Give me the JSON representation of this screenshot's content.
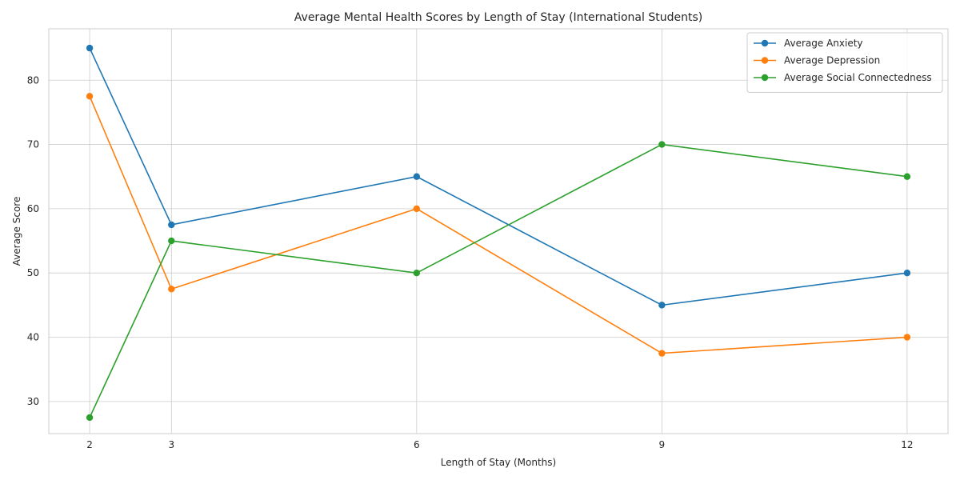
{
  "chart_data": {
    "type": "line",
    "title": "Average Mental Health Scores by Length of Stay (International Students)",
    "xlabel": "Length of Stay (Months)",
    "ylabel": "Average Score",
    "x": [
      2,
      3,
      6,
      9,
      12
    ],
    "x_ticks": [
      2,
      3,
      6,
      9,
      12
    ],
    "xlim": [
      1.5,
      12.5
    ],
    "y_ticks": [
      30,
      40,
      50,
      60,
      70,
      80
    ],
    "ylim": [
      25,
      88
    ],
    "grid": true,
    "legend_position": "top-right",
    "series": [
      {
        "name": "Average Anxiety",
        "color": "#1f77b4",
        "values": [
          85,
          57.5,
          65,
          45,
          50
        ]
      },
      {
        "name": "Average Depression",
        "color": "#ff7f0e",
        "values": [
          77.5,
          47.5,
          60,
          37.5,
          40
        ]
      },
      {
        "name": "Average Social Connectedness",
        "color": "#2ca02c",
        "values": [
          27.5,
          55,
          50,
          70,
          65
        ]
      }
    ]
  }
}
